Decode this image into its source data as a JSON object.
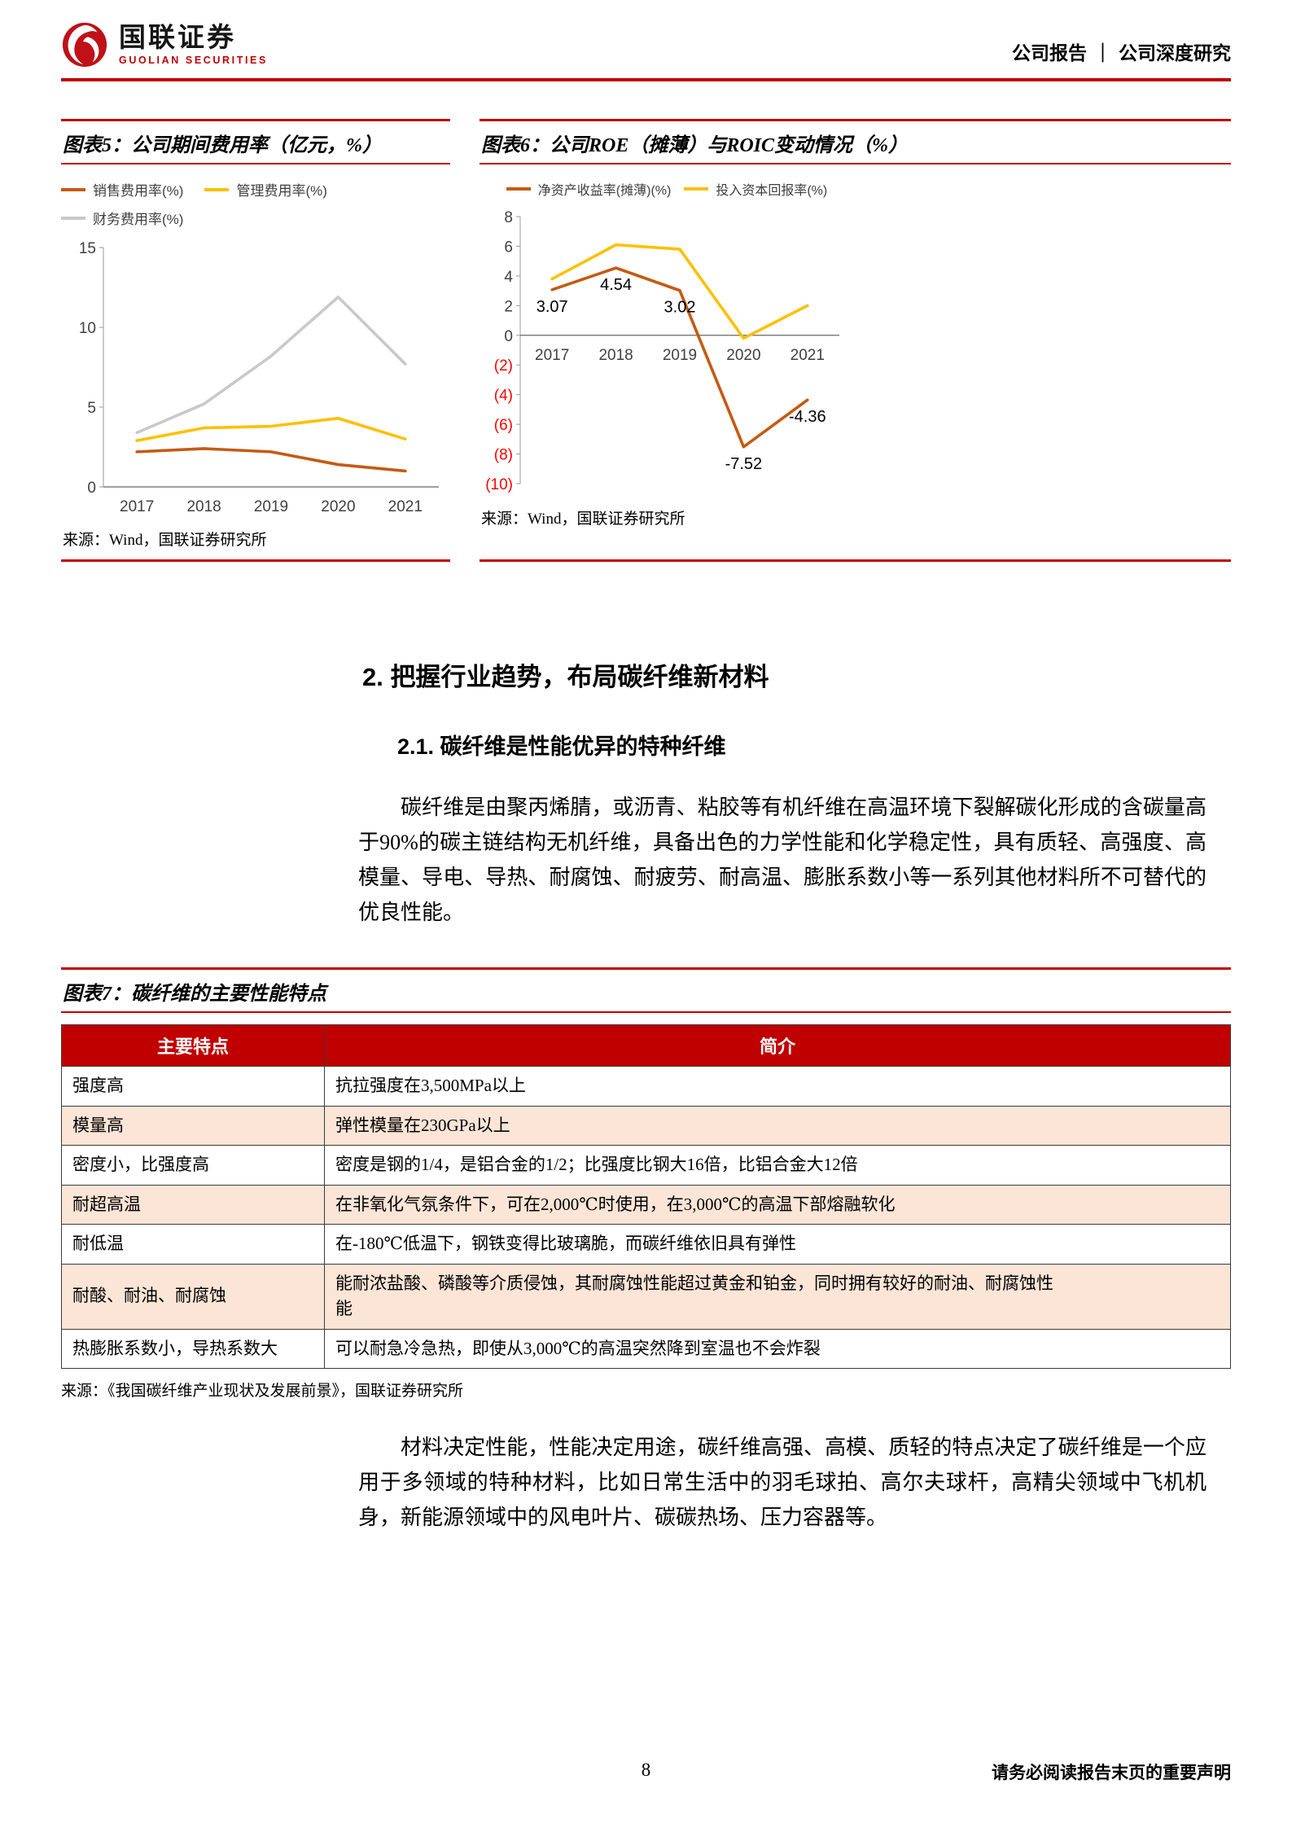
{
  "header": {
    "brand_cn": "国联证券",
    "brand_en": "GUOLIAN SECURITIES",
    "doc_type": "公司报告",
    "separator": "｜",
    "doc_subtype": "公司深度研究"
  },
  "chart_data": [
    {
      "type": "line",
      "title": "图表5：公司期间费用率（亿元，%）",
      "categories": [
        "2017",
        "2018",
        "2019",
        "2020",
        "2021"
      ],
      "series": [
        {
          "name": "销售费用率(%)",
          "color": "#C55A11",
          "values": [
            2.2,
            2.4,
            2.2,
            1.4,
            1.0
          ]
        },
        {
          "name": "管理费用率(%)",
          "color": "#FFC000",
          "values": [
            2.9,
            3.7,
            3.8,
            4.3,
            3.0
          ]
        },
        {
          "name": "财务费用率(%)",
          "color": "#C9C9C9",
          "values": [
            3.4,
            5.2,
            8.2,
            11.9,
            7.7
          ]
        }
      ],
      "ylim": [
        0,
        15
      ],
      "yticks": [
        15,
        10,
        5,
        0
      ],
      "grid": false,
      "legend_position": "top",
      "source": "来源：Wind，国联证券研究所"
    },
    {
      "type": "line",
      "title": "图表6：公司ROE（摊薄）与ROIC变动情况（%）",
      "categories": [
        "2017",
        "2018",
        "2019",
        "2020",
        "2021"
      ],
      "series": [
        {
          "name": "净资产收益率(摊薄)(%)",
          "color": "#C55A11",
          "values": [
            3.07,
            4.54,
            3.02,
            -7.52,
            -4.36
          ],
          "point_labels": [
            "3.07",
            "4.54",
            "3.02",
            "-7.52",
            "-4.36"
          ]
        },
        {
          "name": "投入资本回报率(%)",
          "color": "#FFC000",
          "values": [
            3.8,
            6.1,
            5.8,
            -0.2,
            2.0
          ]
        }
      ],
      "ylim": [
        -10,
        8
      ],
      "yticks": [
        8,
        6,
        4,
        2,
        0,
        -2,
        -4,
        -6,
        -8,
        -10
      ],
      "ytick_labels": [
        "8",
        "6",
        "4",
        "2",
        "0",
        "(2)",
        "(4)",
        "(6)",
        "(8)",
        "(10)"
      ],
      "grid": false,
      "legend_position": "top",
      "source": "来源：Wind，国联证券研究所"
    }
  ],
  "section": {
    "h2": "2. 把握行业趋势，布局碳纤维新材料",
    "h3": "2.1. 碳纤维是性能优异的特种纤维",
    "para1": "碳纤维是由聚丙烯腈，或沥青、粘胶等有机纤维在高温环境下裂解碳化形成的含碳量高于90%的碳主链结构无机纤维，具备出色的力学性能和化学稳定性，具有质轻、高强度、高模量、导电、导热、耐腐蚀、耐疲劳、耐高温、膨胀系数小等一系列其他材料所不可替代的优良性能。",
    "para2": "材料决定性能，性能决定用途，碳纤维高强、高模、质轻的特点决定了碳纤维是一个应用于多领域的特种材料，比如日常生活中的羽毛球拍、高尔夫球杆，高精尖领域中飞机机身，新能源领域中的风电叶片、碳碳热场、压力容器等。"
  },
  "table_fig": {
    "title": "图表7：碳纤维的主要性能特点",
    "headers": [
      "主要特点",
      "简介"
    ],
    "rows": [
      [
        "强度高",
        "抗拉强度在3,500MPa以上"
      ],
      [
        "模量高",
        "弹性模量在230GPa以上"
      ],
      [
        "密度小，比强度高",
        "密度是钢的1/4，是铝合金的1/2；比强度比钢大16倍，比铝合金大12倍"
      ],
      [
        "耐超高温",
        "在非氧化气氛条件下，可在2,000℃时使用，在3,000℃的高温下部熔融软化"
      ],
      [
        "耐低温",
        "在-180℃低温下，钢铁变得比玻璃脆，而碳纤维依旧具有弹性"
      ],
      [
        "耐酸、耐油、耐腐蚀",
        "能耐浓盐酸、磷酸等介质侵蚀，其耐腐蚀性能超过黄金和铂金，同时拥有较好的耐油、耐腐蚀性能"
      ],
      [
        "热膨胀系数小，导热系数大",
        "可以耐急冷急热，即使从3,000℃的高温突然降到室温也不会炸裂"
      ]
    ],
    "source": "来源：《我国碳纤维产业现状及发展前景》，国联证券研究所"
  },
  "footer": {
    "page_number": "8",
    "disclaimer": "请务必阅读报告末页的重要声明"
  },
  "colors": {
    "accent_red": "#C00000",
    "tick_negative": "#FF0000",
    "table_header_bg": "#C00000",
    "table_row_alt": "#FBE5D6",
    "series_orange": "#C55A11",
    "series_yellow": "#FFC000",
    "series_gray": "#C9C9C9"
  }
}
